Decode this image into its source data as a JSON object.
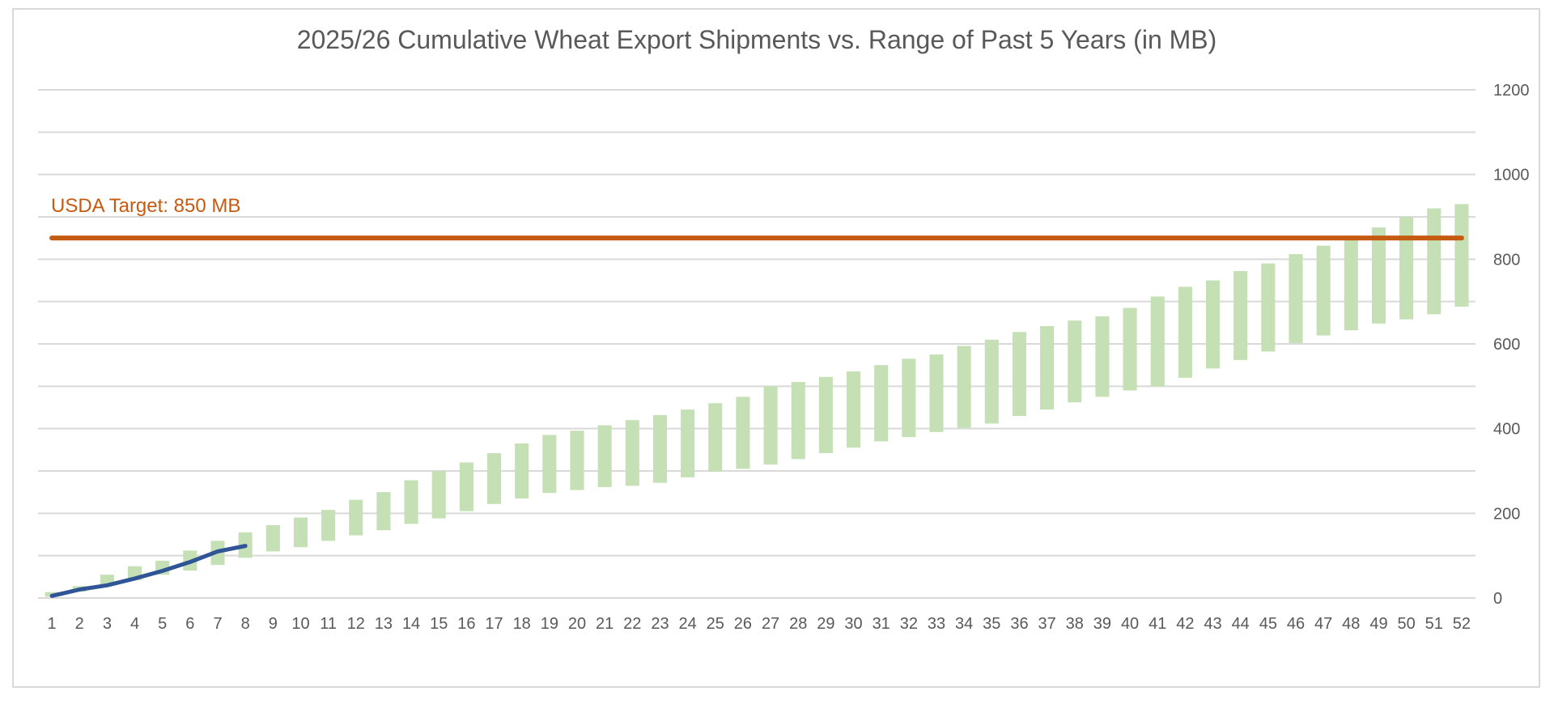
{
  "chart_data": {
    "type": "floating-bar-with-lines",
    "title": "2025/26 Cumulative Wheat Export Shipments vs. Range of Past 5 Years (in MB)",
    "x": [
      1,
      2,
      3,
      4,
      5,
      6,
      7,
      8,
      9,
      10,
      11,
      12,
      13,
      14,
      15,
      16,
      17,
      18,
      19,
      20,
      21,
      22,
      23,
      24,
      25,
      26,
      27,
      28,
      29,
      30,
      31,
      32,
      33,
      34,
      35,
      36,
      37,
      38,
      39,
      40,
      41,
      42,
      43,
      44,
      45,
      46,
      47,
      48,
      49,
      50,
      51,
      52
    ],
    "y_axis": {
      "side": "right",
      "ylim": [
        0,
        1200
      ],
      "ticks": [
        0,
        200,
        400,
        600,
        800,
        1000,
        1200
      ],
      "grid_step": 100
    },
    "grid": true,
    "series": [
      {
        "kind": "range-bars",
        "color": "#c5e0b4",
        "low": [
          3,
          15,
          30,
          42,
          55,
          65,
          78,
          95,
          110,
          120,
          135,
          148,
          160,
          175,
          188,
          205,
          222,
          235,
          248,
          255,
          262,
          265,
          272,
          285,
          298,
          305,
          315,
          328,
          342,
          355,
          370,
          380,
          392,
          402,
          412,
          430,
          445,
          462,
          475,
          490,
          500,
          520,
          542,
          562,
          582,
          602,
          620,
          632,
          648,
          658,
          670,
          688
        ],
        "high": [
          14,
          28,
          55,
          75,
          88,
          112,
          135,
          155,
          172,
          190,
          208,
          232,
          250,
          278,
          300,
          320,
          342,
          365,
          385,
          395,
          408,
          420,
          432,
          445,
          460,
          475,
          500,
          510,
          522,
          535,
          550,
          565,
          575,
          595,
          610,
          628,
          642,
          655,
          665,
          685,
          712,
          735,
          750,
          772,
          790,
          812,
          832,
          850,
          875,
          900,
          920,
          930
        ]
      },
      {
        "kind": "line",
        "color": "#2f5597",
        "x": [
          1,
          2,
          3,
          4,
          5,
          6,
          7,
          8
        ],
        "values": [
          5,
          20,
          30,
          46,
          64,
          85,
          110,
          123
        ]
      },
      {
        "kind": "line",
        "color": "#c55a11",
        "x": [
          1,
          52
        ],
        "values": [
          850,
          850
        ]
      }
    ],
    "annotations": [
      {
        "text": "USDA Target: 850 MB",
        "color": "#c55a11"
      }
    ]
  }
}
